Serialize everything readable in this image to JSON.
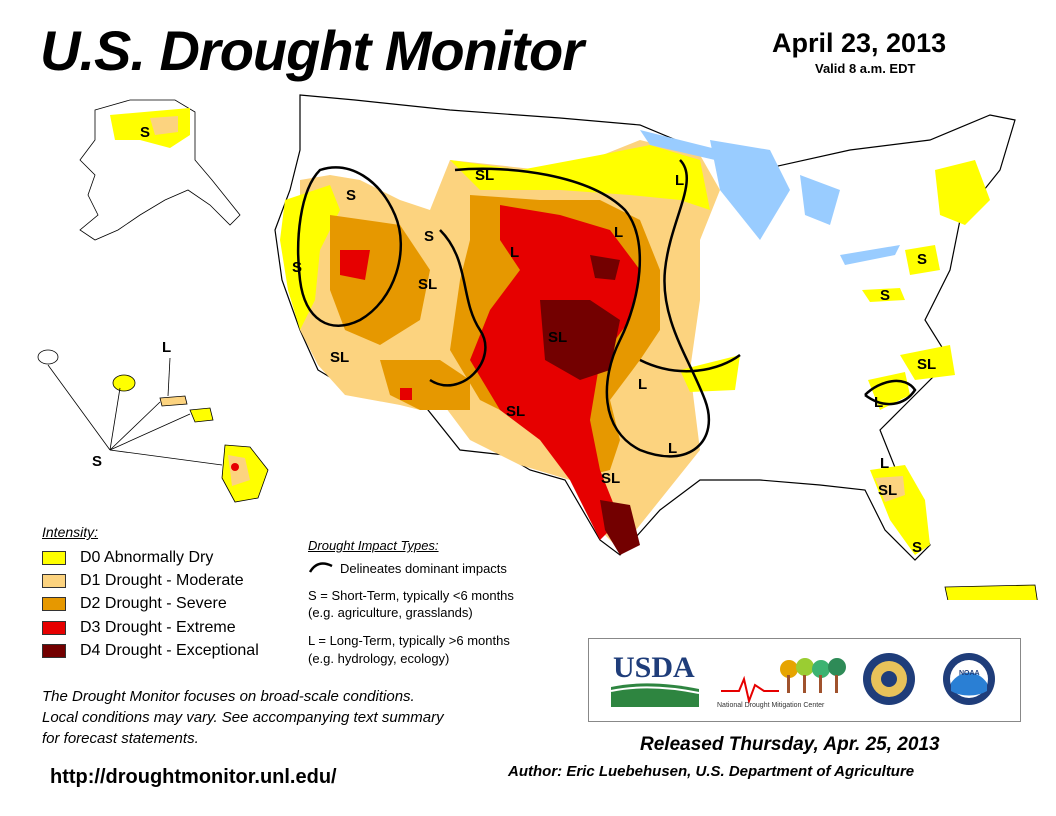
{
  "header": {
    "title": "U.S. Drought Monitor",
    "date": "April 23, 2013",
    "valid": "Valid 8 a.m. EDT"
  },
  "colors": {
    "d0": "#ffff00",
    "d1": "#fcd37f",
    "d2": "#e69800",
    "d3": "#e60000",
    "d4": "#730000",
    "water": "#99ccff"
  },
  "legend": {
    "title": "Intensity:",
    "items": [
      {
        "code": "D0",
        "label": "D0 Abnormally Dry",
        "color": "#ffff00"
      },
      {
        "code": "D1",
        "label": "D1 Drought - Moderate",
        "color": "#fcd37f"
      },
      {
        "code": "D2",
        "label": "D2 Drought - Severe",
        "color": "#e69800"
      },
      {
        "code": "D3",
        "label": "D3 Drought - Extreme",
        "color": "#e60000"
      },
      {
        "code": "D4",
        "label": "D4 Drought - Exceptional",
        "color": "#730000"
      }
    ]
  },
  "impacts": {
    "title": "Drought Impact Types:",
    "boundary": "Delineates dominant impacts",
    "short_term": "S = Short-Term, typically <6 months",
    "short_term_eg": "(e.g. agriculture, grasslands)",
    "long_term": "L = Long-Term, typically >6 months",
    "long_term_eg": "(e.g. hydrology, ecology)"
  },
  "map_labels": {
    "alaska": "S",
    "hawaii_l": "L",
    "hawaii_s": "S",
    "pacific_nw": "S",
    "montana": "SL",
    "idaho": "S",
    "wyoming": "L",
    "minnesota_n": "L",
    "minnesota_c": "L",
    "great_basin": "SL",
    "calif": "S",
    "nevada_south": "SL",
    "kansas": "SL",
    "ozark": "L",
    "new_mexico": "SL",
    "arkansas": "L",
    "texas": "SL",
    "new_york": "S",
    "pennsylvania": "S",
    "virginia": "SL",
    "carolina": "L",
    "florida_n": "L",
    "florida_c": "SL",
    "florida_s": "S"
  },
  "logos": {
    "usda": "USDA",
    "ndmc": "National Drought Mitigation Center",
    "doc": "DOC",
    "noaa": "NOAA"
  },
  "note": {
    "line1": "The Drought Monitor focuses on broad-scale conditions.",
    "line2": "Local conditions may vary. See accompanying text summary",
    "line3": "for forecast statements."
  },
  "footer": {
    "released": "Released Thursday, Apr. 25, 2013",
    "author": "Author: Eric Luebehusen, U.S. Department of Agriculture",
    "url": "http://droughtmonitor.unl.edu/"
  }
}
